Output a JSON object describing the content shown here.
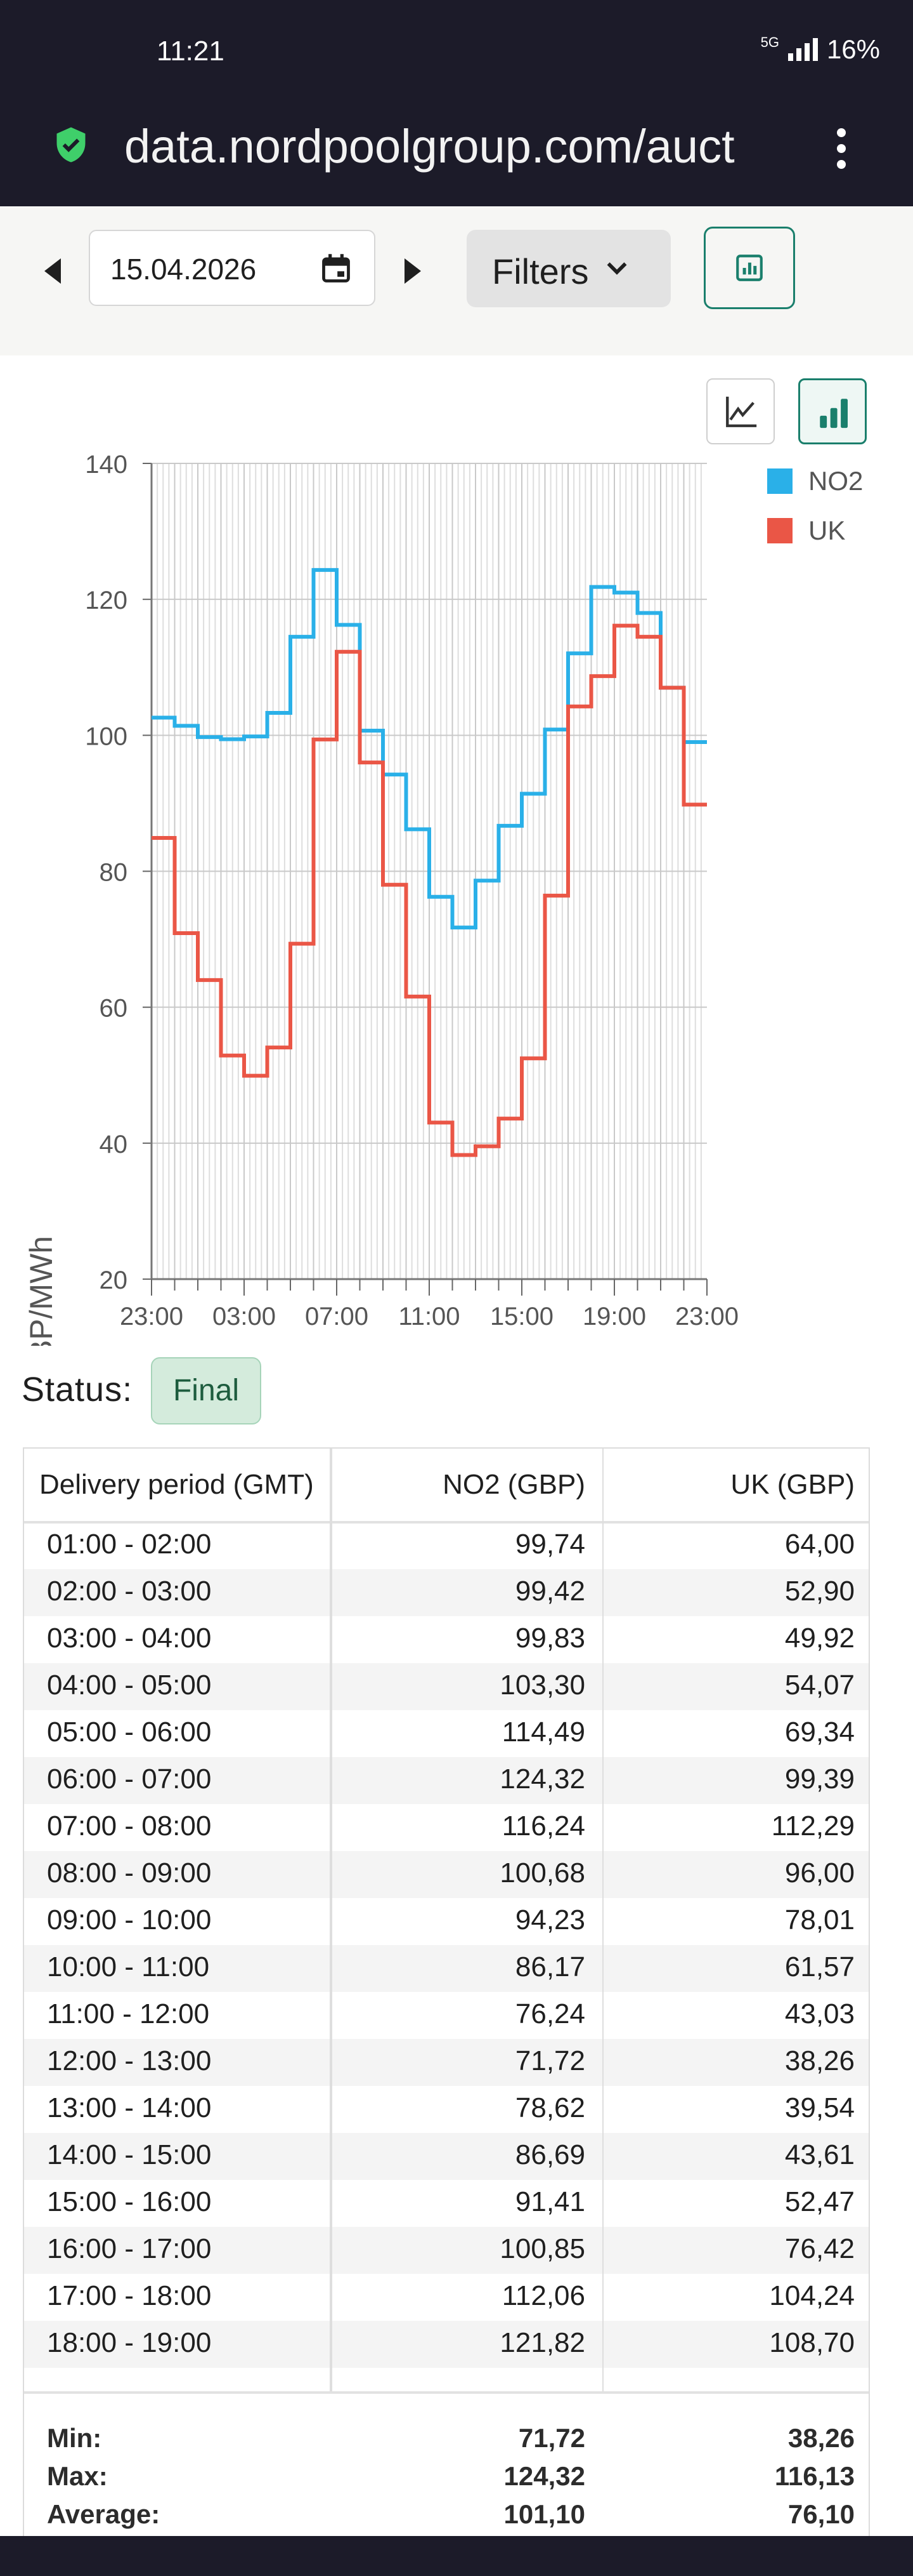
{
  "status_bar": {
    "time": "11:21",
    "network": "5G",
    "battery": "16%"
  },
  "browser": {
    "url": "data.nordpoolgroup.com/auct"
  },
  "toolbar": {
    "date": "15.04.2026",
    "filters_label": "Filters"
  },
  "colors": {
    "accent": "#1a7f6c",
    "no2": "#2ab0e8",
    "uk": "#ea5646"
  },
  "chart_data": {
    "type": "line",
    "step": true,
    "ylabel": "GBP/MWh",
    "ylim": [
      20,
      140
    ],
    "yticks": [
      20,
      40,
      60,
      80,
      100,
      120,
      140
    ],
    "xtick_labels": [
      "23:00",
      "03:00",
      "07:00",
      "11:00",
      "15:00",
      "19:00",
      "23:00"
    ],
    "hours": [
      "23:00",
      "00:00",
      "01:00",
      "02:00",
      "03:00",
      "04:00",
      "05:00",
      "06:00",
      "07:00",
      "08:00",
      "09:00",
      "10:00",
      "11:00",
      "12:00",
      "13:00",
      "14:00",
      "15:00",
      "16:00",
      "17:00",
      "18:00",
      "19:00",
      "20:00",
      "21:00",
      "22:00",
      "23:00"
    ],
    "legend_position": "top-right",
    "grid": true,
    "series": [
      {
        "name": "NO2",
        "color": "#2ab0e8",
        "values": [
          102.6,
          101.4,
          99.74,
          99.42,
          99.83,
          103.3,
          114.49,
          124.32,
          116.24,
          100.68,
          94.23,
          86.17,
          76.24,
          71.72,
          78.62,
          86.69,
          91.41,
          100.85,
          112.06,
          121.82,
          121.0,
          118.0,
          107.0,
          99.0
        ]
      },
      {
        "name": "UK",
        "color": "#ea5646",
        "values": [
          84.9,
          70.9,
          64.0,
          52.9,
          49.92,
          54.07,
          69.34,
          99.39,
          112.29,
          96.0,
          78.01,
          61.57,
          43.03,
          38.26,
          39.54,
          43.61,
          52.47,
          76.42,
          104.24,
          108.7,
          116.13,
          114.5,
          107.0,
          89.8
        ]
      }
    ]
  },
  "status": {
    "label": "Status:",
    "value": "Final"
  },
  "table": {
    "headers": {
      "period": "Delivery period (GMT)",
      "no2": "NO2 (GBP)",
      "uk": "UK (GBP)"
    },
    "rows": [
      {
        "period": "01:00 - 02:00",
        "no2": "99,74",
        "uk": "64,00"
      },
      {
        "period": "02:00 - 03:00",
        "no2": "99,42",
        "uk": "52,90"
      },
      {
        "period": "03:00 - 04:00",
        "no2": "99,83",
        "uk": "49,92"
      },
      {
        "period": "04:00 - 05:00",
        "no2": "103,30",
        "uk": "54,07"
      },
      {
        "period": "05:00 - 06:00",
        "no2": "114,49",
        "uk": "69,34"
      },
      {
        "period": "06:00 - 07:00",
        "no2": "124,32",
        "uk": "99,39"
      },
      {
        "period": "07:00 - 08:00",
        "no2": "116,24",
        "uk": "112,29"
      },
      {
        "period": "08:00 - 09:00",
        "no2": "100,68",
        "uk": "96,00"
      },
      {
        "period": "09:00 - 10:00",
        "no2": "94,23",
        "uk": "78,01"
      },
      {
        "period": "10:00 - 11:00",
        "no2": "86,17",
        "uk": "61,57"
      },
      {
        "period": "11:00 - 12:00",
        "no2": "76,24",
        "uk": "43,03"
      },
      {
        "period": "12:00 - 13:00",
        "no2": "71,72",
        "uk": "38,26"
      },
      {
        "period": "13:00 - 14:00",
        "no2": "78,62",
        "uk": "39,54"
      },
      {
        "period": "14:00 - 15:00",
        "no2": "86,69",
        "uk": "43,61"
      },
      {
        "period": "15:00 - 16:00",
        "no2": "91,41",
        "uk": "52,47"
      },
      {
        "period": "16:00 - 17:00",
        "no2": "100,85",
        "uk": "76,42"
      },
      {
        "period": "17:00 - 18:00",
        "no2": "112,06",
        "uk": "104,24"
      },
      {
        "period": "18:00 - 19:00",
        "no2": "121,82",
        "uk": "108,70"
      }
    ],
    "summary": {
      "min": {
        "label": "Min:",
        "no2": "71,72",
        "uk": "38,26"
      },
      "max": {
        "label": "Max:",
        "no2": "124,32",
        "uk": "116,13"
      },
      "average": {
        "label": "Average:",
        "no2": "101,10",
        "uk": "76,10"
      }
    }
  }
}
